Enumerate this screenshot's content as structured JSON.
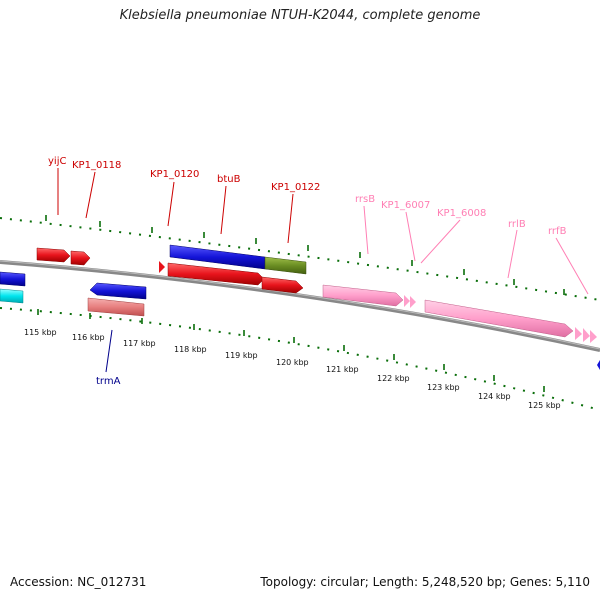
{
  "title": "Klebsiella pneumoniae NTUH-K2044, complete genome",
  "footer": {
    "accession": "Accession: NC_012731",
    "summary": "Topology: circular; Length: 5,248,520 bp; Genes: 5,110"
  },
  "scale_labels": [
    "115 kbp",
    "116 kbp",
    "117 kbp",
    "118 kbp",
    "119 kbp",
    "120 kbp",
    "121 kbp",
    "122 kbp",
    "123 kbp",
    "124 kbp",
    "125 kbp"
  ],
  "gene_labels": {
    "yijC": "yijC",
    "kp1_0118": "KP1_0118",
    "kp1_0120": "KP1_0120",
    "btuB": "btuB",
    "kp1_0122": "KP1_0122",
    "rrsB": "rrsB",
    "kp1_6007": "KP1_6007",
    "kp1_6008": "KP1_6008",
    "rrlB": "rrlB",
    "rrfB": "rrfB",
    "trmA": "trmA"
  },
  "colors": {
    "cds_red": "#e8141c",
    "cds_blue": "#1414d8",
    "rrna_pink": "#ff9fcb",
    "olive": "#6b8e23",
    "cyan": "#00e5ee",
    "salmon": "#e77f7f",
    "tick_green": "#0a6e0a",
    "backbone": "#888888"
  }
}
